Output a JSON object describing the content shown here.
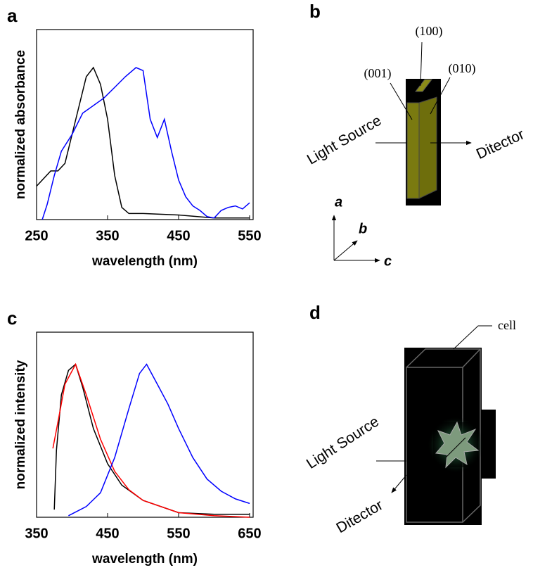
{
  "chart_data": [
    {
      "type": "line",
      "panel": "a",
      "xlabel": "wavelength (nm)",
      "ylabel": "normalized absorbance",
      "xlim": [
        250,
        555
      ],
      "xticks": [
        250,
        350,
        450,
        550
      ],
      "ylim": [
        0,
        1.25
      ],
      "series": [
        {
          "color": "#000000",
          "x": [
            250,
            270,
            280,
            290,
            300,
            310,
            320,
            330,
            340,
            350,
            360,
            370,
            380,
            400,
            450,
            500,
            550
          ],
          "values": [
            0.22,
            0.32,
            0.32,
            0.37,
            0.56,
            0.75,
            0.94,
            1.0,
            0.89,
            0.66,
            0.29,
            0.08,
            0.04,
            0.04,
            0.03,
            0.01,
            0.01
          ]
        },
        {
          "color": "#0000ff",
          "x": [
            258,
            265,
            275,
            285,
            300,
            315,
            330,
            345,
            360,
            375,
            390,
            400,
            410,
            420,
            430,
            440,
            450,
            460,
            470,
            480,
            490,
            500,
            510,
            520,
            530,
            540,
            550
          ],
          "values": [
            0,
            0.1,
            0.29,
            0.45,
            0.56,
            0.7,
            0.75,
            0.8,
            0.87,
            0.94,
            1.0,
            0.98,
            0.66,
            0.54,
            0.66,
            0.45,
            0.26,
            0.15,
            0.09,
            0.06,
            0.02,
            0.01,
            0.06,
            0.08,
            0.09,
            0.07,
            0.11
          ]
        }
      ]
    },
    {
      "type": "line",
      "panel": "c",
      "xlabel": "wavelength (nm)",
      "ylabel": "normalized intensity",
      "xlim": [
        350,
        655
      ],
      "xticks": [
        350,
        450,
        550,
        650
      ],
      "ylim": [
        0,
        1.21
      ],
      "series": [
        {
          "color": "#000000",
          "x": [
            375,
            378,
            385,
            395,
            405,
            415,
            430,
            450,
            470,
            500,
            550,
            600,
            650
          ],
          "values": [
            0.05,
            0.44,
            0.8,
            0.96,
            1.0,
            0.85,
            0.58,
            0.35,
            0.21,
            0.11,
            0.03,
            0.02,
            0.02
          ]
        },
        {
          "color": "#ff0000",
          "x": [
            373,
            380,
            390,
            405,
            420,
            440,
            460,
            480,
            500,
            550,
            600,
            650
          ],
          "values": [
            0.45,
            0.62,
            0.87,
            1.0,
            0.8,
            0.51,
            0.3,
            0.18,
            0.11,
            0.03,
            0.01,
            0
          ]
        },
        {
          "color": "#0000ff",
          "x": [
            395,
            420,
            440,
            460,
            480,
            495,
            505,
            520,
            535,
            550,
            570,
            590,
            610,
            630,
            650
          ],
          "values": [
            0.01,
            0.07,
            0.16,
            0.39,
            0.71,
            0.94,
            1.0,
            0.87,
            0.74,
            0.58,
            0.39,
            0.25,
            0.17,
            0.12,
            0.09
          ]
        }
      ]
    }
  ],
  "diagrams": [
    {
      "panel": "b",
      "face_top": "(100)",
      "face_left": "(001)",
      "face_right": "(010)",
      "source": "Light Source",
      "detector": "Ditector",
      "axis_a": "a",
      "axis_b": "b",
      "axis_c": "c"
    },
    {
      "panel": "d",
      "cell": "cell",
      "source": "Light Source",
      "detector": "Ditector"
    }
  ]
}
